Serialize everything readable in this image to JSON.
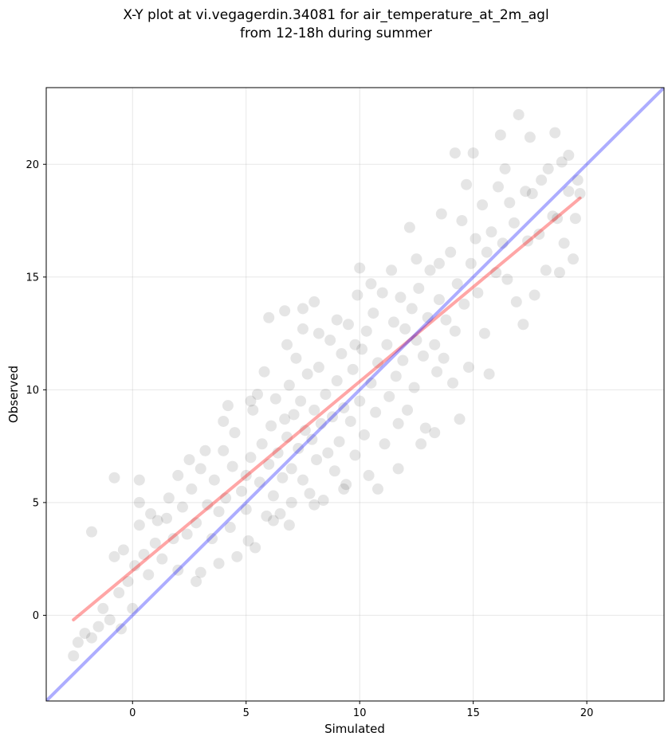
{
  "chart_data": {
    "type": "scatter",
    "title": "X-Y plot at vi.vegagerdin.34081 for air_temperature_at_2m_agl",
    "subtitle": "from 12-18h during summer",
    "xlabel": "Simulated",
    "ylabel": "Observed",
    "xlim": [
      -3.8,
      23.4
    ],
    "ylim": [
      -3.8,
      23.4
    ],
    "xticks": [
      0,
      5,
      10,
      15,
      20
    ],
    "yticks": [
      0,
      5,
      10,
      15,
      20
    ],
    "grid": true,
    "point_color": "#000000",
    "point_alpha": 0.1,
    "points": [
      [
        -2.6,
        -1.8
      ],
      [
        -2.4,
        -1.2
      ],
      [
        -2.1,
        -0.8
      ],
      [
        -1.8,
        -1.0
      ],
      [
        -1.5,
        -0.5
      ],
      [
        -1.8,
        3.7
      ],
      [
        -1.3,
        0.3
      ],
      [
        -1.0,
        -0.2
      ],
      [
        -0.8,
        6.1
      ],
      [
        -0.5,
        -0.6
      ],
      [
        -0.6,
        1.0
      ],
      [
        -0.4,
        2.9
      ],
      [
        -0.2,
        1.5
      ],
      [
        0.0,
        0.3
      ],
      [
        0.1,
        2.2
      ],
      [
        0.3,
        4.0
      ],
      [
        0.3,
        6.0
      ],
      [
        0.5,
        2.7
      ],
      [
        0.7,
        1.8
      ],
      [
        0.8,
        4.5
      ],
      [
        1.0,
        3.2
      ],
      [
        1.3,
        2.5
      ],
      [
        1.5,
        4.3
      ],
      [
        1.8,
        3.4
      ],
      [
        1.6,
        5.2
      ],
      [
        2.0,
        2.0
      ],
      [
        2.2,
        4.8
      ],
      [
        2.4,
        3.6
      ],
      [
        2.6,
        5.6
      ],
      [
        2.8,
        4.1
      ],
      [
        3.0,
        1.9
      ],
      [
        3.0,
        6.5
      ],
      [
        3.3,
        4.9
      ],
      [
        3.5,
        3.4
      ],
      [
        3.6,
        6.0
      ],
      [
        3.8,
        4.6
      ],
      [
        4.0,
        7.3
      ],
      [
        4.1,
        5.2
      ],
      [
        4.3,
        3.9
      ],
      [
        4.4,
        6.6
      ],
      [
        4.5,
        8.1
      ],
      [
        4.6,
        2.6
      ],
      [
        4.8,
        5.5
      ],
      [
        5.0,
        6.2
      ],
      [
        5.0,
        4.7
      ],
      [
        5.2,
        7.0
      ],
      [
        5.3,
        9.1
      ],
      [
        5.4,
        3.0
      ],
      [
        5.6,
        5.9
      ],
      [
        5.7,
        7.6
      ],
      [
        5.8,
        10.8
      ],
      [
        5.9,
        4.4
      ],
      [
        6.0,
        6.7
      ],
      [
        6.1,
        8.4
      ],
      [
        6.2,
        5.3
      ],
      [
        6.3,
        9.6
      ],
      [
        6.4,
        7.2
      ],
      [
        6.5,
        4.5
      ],
      [
        6.6,
        6.1
      ],
      [
        6.7,
        8.7
      ],
      [
        6.7,
        13.5
      ],
      [
        6.8,
        7.9
      ],
      [
        6.9,
        10.2
      ],
      [
        7.0,
        6.5
      ],
      [
        7.0,
        5.0
      ],
      [
        7.1,
        8.9
      ],
      [
        7.2,
        11.4
      ],
      [
        7.3,
        7.4
      ],
      [
        7.4,
        9.5
      ],
      [
        7.5,
        6.0
      ],
      [
        7.6,
        8.2
      ],
      [
        7.7,
        10.7
      ],
      [
        7.8,
        5.4
      ],
      [
        7.9,
        7.8
      ],
      [
        8.0,
        9.1
      ],
      [
        8.0,
        13.9
      ],
      [
        8.1,
        6.9
      ],
      [
        8.2,
        11.0
      ],
      [
        8.3,
        8.5
      ],
      [
        8.4,
        5.1
      ],
      [
        8.5,
        9.8
      ],
      [
        8.6,
        7.2
      ],
      [
        8.7,
        12.2
      ],
      [
        8.8,
        8.8
      ],
      [
        8.9,
        6.4
      ],
      [
        9.0,
        10.4
      ],
      [
        9.1,
        7.7
      ],
      [
        9.2,
        11.6
      ],
      [
        9.3,
        9.2
      ],
      [
        9.4,
        5.8
      ],
      [
        9.5,
        12.9
      ],
      [
        9.6,
        8.6
      ],
      [
        9.7,
        10.9
      ],
      [
        9.8,
        7.1
      ],
      [
        9.9,
        14.2
      ],
      [
        10.0,
        9.5
      ],
      [
        10.0,
        15.4
      ],
      [
        10.1,
        11.8
      ],
      [
        10.2,
        8.0
      ],
      [
        10.3,
        12.6
      ],
      [
        10.4,
        6.2
      ],
      [
        10.5,
        10.3
      ],
      [
        10.6,
        13.4
      ],
      [
        10.7,
        9.0
      ],
      [
        10.8,
        11.2
      ],
      [
        11.0,
        14.3
      ],
      [
        11.1,
        7.6
      ],
      [
        11.2,
        12.0
      ],
      [
        11.3,
        9.7
      ],
      [
        11.5,
        13.0
      ],
      [
        11.6,
        10.6
      ],
      [
        11.7,
        8.5
      ],
      [
        11.8,
        14.1
      ],
      [
        11.9,
        11.3
      ],
      [
        12.0,
        12.7
      ],
      [
        12.1,
        9.1
      ],
      [
        12.2,
        17.2
      ],
      [
        12.3,
        13.6
      ],
      [
        12.4,
        10.1
      ],
      [
        12.5,
        12.2
      ],
      [
        12.6,
        14.5
      ],
      [
        12.8,
        11.5
      ],
      [
        12.9,
        8.3
      ],
      [
        13.0,
        13.2
      ],
      [
        13.1,
        15.3
      ],
      [
        13.3,
        12.0
      ],
      [
        13.4,
        10.8
      ],
      [
        13.5,
        14.0
      ],
      [
        13.6,
        17.8
      ],
      [
        13.7,
        11.4
      ],
      [
        13.8,
        13.1
      ],
      [
        14.0,
        16.1
      ],
      [
        14.1,
        10.3
      ],
      [
        14.2,
        12.6
      ],
      [
        14.2,
        20.5
      ],
      [
        14.3,
        14.7
      ],
      [
        14.4,
        8.7
      ],
      [
        14.5,
        17.5
      ],
      [
        14.6,
        13.8
      ],
      [
        14.7,
        19.1
      ],
      [
        14.8,
        11.0
      ],
      [
        14.9,
        15.6
      ],
      [
        15.0,
        20.5
      ],
      [
        15.1,
        16.7
      ],
      [
        15.2,
        14.3
      ],
      [
        15.4,
        18.2
      ],
      [
        15.5,
        12.5
      ],
      [
        15.6,
        16.1
      ],
      [
        15.7,
        10.7
      ],
      [
        15.8,
        17.0
      ],
      [
        16.0,
        15.2
      ],
      [
        16.1,
        19.0
      ],
      [
        16.2,
        21.3
      ],
      [
        16.3,
        16.5
      ],
      [
        16.4,
        19.8
      ],
      [
        16.5,
        14.9
      ],
      [
        16.6,
        18.3
      ],
      [
        16.8,
        17.4
      ],
      [
        16.9,
        13.9
      ],
      [
        17.0,
        22.2
      ],
      [
        17.2,
        12.9
      ],
      [
        17.3,
        18.8
      ],
      [
        17.4,
        16.6
      ],
      [
        17.5,
        21.2
      ],
      [
        17.6,
        18.7
      ],
      [
        17.7,
        14.2
      ],
      [
        17.9,
        16.9
      ],
      [
        18.0,
        19.3
      ],
      [
        18.2,
        15.3
      ],
      [
        18.3,
        19.8
      ],
      [
        18.5,
        17.7
      ],
      [
        18.6,
        21.4
      ],
      [
        18.7,
        17.6
      ],
      [
        18.8,
        15.2
      ],
      [
        18.9,
        20.1
      ],
      [
        19.0,
        16.5
      ],
      [
        19.2,
        18.8
      ],
      [
        19.2,
        20.4
      ],
      [
        19.4,
        15.8
      ],
      [
        19.5,
        17.6
      ],
      [
        19.6,
        19.3
      ],
      [
        19.7,
        18.7
      ],
      [
        2.5,
        6.9
      ],
      [
        3.2,
        7.3
      ],
      [
        4.0,
        8.6
      ],
      [
        5.5,
        9.8
      ],
      [
        6.8,
        12.0
      ],
      [
        7.5,
        12.7
      ],
      [
        8.2,
        12.5
      ],
      [
        9.0,
        13.1
      ],
      [
        9.8,
        12.0
      ],
      [
        10.5,
        14.7
      ],
      [
        11.4,
        15.3
      ],
      [
        12.5,
        15.8
      ],
      [
        13.5,
        15.6
      ],
      [
        8.0,
        4.9
      ],
      [
        9.3,
        5.6
      ],
      [
        10.8,
        5.6
      ],
      [
        11.7,
        6.5
      ],
      [
        12.7,
        7.6
      ],
      [
        13.3,
        8.1
      ],
      [
        5.1,
        3.3
      ],
      [
        6.2,
        4.2
      ],
      [
        6.9,
        4.0
      ],
      [
        3.8,
        2.3
      ],
      [
        2.8,
        1.5
      ],
      [
        1.1,
        4.2
      ],
      [
        0.3,
        5.0
      ],
      [
        -0.8,
        2.6
      ],
      [
        2.0,
        6.2
      ],
      [
        6.0,
        13.2
      ],
      [
        7.5,
        13.6
      ],
      [
        4.2,
        9.3
      ],
      [
        5.2,
        9.5
      ]
    ],
    "series": [
      {
        "name": "",
        "color": "#ff0000",
        "alpha": 0.35,
        "type": "regression",
        "x": [
          -2.6,
          19.7
        ],
        "y": [
          -0.2,
          18.5
        ]
      },
      {
        "name": "",
        "color": "#0000ff",
        "alpha": 0.32,
        "type": "identity",
        "x": [
          -3.8,
          23.4
        ],
        "y": [
          -3.8,
          23.4
        ]
      }
    ]
  }
}
